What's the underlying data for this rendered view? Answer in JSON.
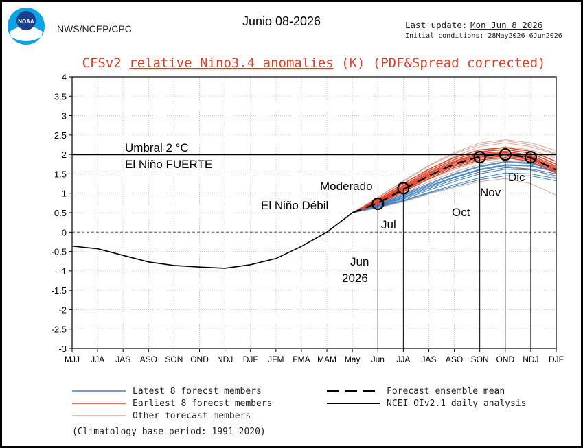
{
  "header": {
    "logo_text": "NOAA",
    "agency": "NWS/NCEP/CPC",
    "date_title": "Junio 08-2026",
    "last_update_label": "Last update:",
    "last_update_value": "Mon Jun 8 2026",
    "initial_conditions": "Initial conditions: 28May2026–6Jun2026",
    "title_parts": [
      "CFSv2 ",
      "relative Nino3.4 anomalies",
      " (K) (PDF&Spread corrected)"
    ]
  },
  "colors": {
    "latest": "#3b7fc4",
    "earliest": "#e0452a",
    "other": "#dca898",
    "title": "#d9402a",
    "ensemble_mean": "#000000",
    "analysis": "#000000"
  },
  "annotations": {
    "threshold_line1": "Umbral 2 °C",
    "threshold_line2": "El Niño FUERTE",
    "moderado": "Moderado",
    "debil": "El Niño Débil",
    "jul": "Jul",
    "oct": "Oct",
    "nov": "Nov",
    "dic": "Dic",
    "jun_line1": "Jun",
    "jun_line2": "2026"
  },
  "legend": {
    "latest": "Latest 8 forecst members",
    "earliest": "Earliest 8 forecst members",
    "other": "Other forecast members",
    "mean": "Forecast ensemble mean",
    "analysis": "NCEI OIv2.1 daily analysis"
  },
  "footnote": "(Climatology base period: 1991–2020)",
  "chart_data": {
    "type": "line",
    "x_ticks": [
      "MJJ",
      "JJA",
      "JAS",
      "ASO",
      "SON",
      "OND",
      "NDJ",
      "DJF",
      "JFM",
      "FMA",
      "MAM",
      "May",
      "Jun",
      "JJA",
      "JAS",
      "ASO",
      "SON",
      "OND",
      "NDJ",
      "DJF"
    ],
    "y_ticks": [
      4,
      3.5,
      3,
      2.5,
      2,
      1.5,
      1,
      0.5,
      0,
      -0.5,
      -1,
      -1.5,
      -2,
      -2.5,
      -3
    ],
    "ylim": [
      -3,
      4
    ],
    "grid": true,
    "threshold": 2,
    "analysis": {
      "name": "NCEI OIv2.1 daily analysis",
      "x": [
        0,
        1,
        2,
        3,
        4,
        5,
        6,
        7,
        8,
        9,
        10,
        11
      ],
      "y": [
        -0.36,
        -0.43,
        -0.6,
        -0.77,
        -0.86,
        -0.9,
        -0.93,
        -0.84,
        -0.68,
        -0.37,
        0.0,
        0.5
      ]
    },
    "ensemble_mean": {
      "name": "Forecast ensemble mean",
      "x": [
        11,
        12,
        13,
        14,
        15,
        16,
        17,
        18,
        19
      ],
      "y": [
        0.5,
        0.75,
        1.1,
        1.45,
        1.75,
        1.95,
        2.0,
        1.92,
        1.6
      ]
    },
    "members": {
      "earliest": [
        [
          0.5,
          0.85,
          1.25,
          1.62,
          1.92,
          2.12,
          2.18,
          2.08,
          1.82
        ],
        [
          0.5,
          0.82,
          1.2,
          1.57,
          1.87,
          2.07,
          2.13,
          2.03,
          1.75
        ],
        [
          0.5,
          0.8,
          1.17,
          1.53,
          1.83,
          2.02,
          2.08,
          1.98,
          1.7
        ],
        [
          0.5,
          0.78,
          1.14,
          1.5,
          1.8,
          1.99,
          2.05,
          1.95,
          1.66
        ],
        [
          0.5,
          0.77,
          1.12,
          1.47,
          1.77,
          1.96,
          2.02,
          1.92,
          1.63
        ],
        [
          0.5,
          0.75,
          1.09,
          1.44,
          1.73,
          1.93,
          1.99,
          1.89,
          1.6
        ],
        [
          0.5,
          0.74,
          1.07,
          1.41,
          1.7,
          1.9,
          1.96,
          1.86,
          1.56
        ],
        [
          0.5,
          0.72,
          1.04,
          1.37,
          1.66,
          1.86,
          1.92,
          1.82,
          1.52
        ]
      ],
      "latest": [
        [
          0.5,
          0.66,
          0.85,
          1.08,
          1.3,
          1.5,
          1.62,
          1.6,
          1.45
        ],
        [
          0.5,
          0.65,
          0.82,
          1.02,
          1.22,
          1.4,
          1.52,
          1.5,
          1.38
        ],
        [
          0.5,
          0.68,
          0.9,
          1.15,
          1.4,
          1.6,
          1.72,
          1.7,
          1.55
        ],
        [
          0.5,
          0.67,
          0.88,
          1.12,
          1.35,
          1.55,
          1.66,
          1.63,
          1.5
        ],
        [
          0.5,
          0.7,
          0.95,
          1.22,
          1.48,
          1.68,
          1.8,
          1.76,
          1.6
        ],
        [
          0.5,
          0.72,
          0.98,
          1.25,
          1.5,
          1.7,
          1.82,
          1.78,
          1.62
        ],
        [
          0.5,
          0.64,
          0.8,
          1.0,
          1.18,
          1.35,
          1.45,
          1.45,
          1.32
        ],
        [
          0.5,
          0.69,
          0.93,
          1.18,
          1.42,
          1.62,
          1.74,
          1.72,
          1.57
        ]
      ],
      "other": [
        [
          0.5,
          0.9,
          1.32,
          1.72,
          2.05,
          2.3,
          2.38,
          2.3,
          2.1
        ],
        [
          0.5,
          0.88,
          1.3,
          1.7,
          2.02,
          2.25,
          2.35,
          2.25,
          2.02
        ],
        [
          0.5,
          0.7,
          1.0,
          1.3,
          1.55,
          1.75,
          1.85,
          1.8,
          1.55
        ],
        [
          0.5,
          0.68,
          0.95,
          1.2,
          1.42,
          1.6,
          1.7,
          1.62,
          1.4
        ],
        [
          0.5,
          0.62,
          0.78,
          0.98,
          1.15,
          1.3,
          1.38,
          1.25,
          0.95
        ],
        [
          0.5,
          0.8,
          1.2,
          1.6,
          1.95,
          2.2,
          2.3,
          2.2,
          2.0
        ],
        [
          0.5,
          0.76,
          1.1,
          1.45,
          1.78,
          2.05,
          2.2,
          2.12,
          1.9
        ],
        [
          0.5,
          0.73,
          1.05,
          1.36,
          1.62,
          1.82,
          1.9,
          1.85,
          1.68
        ]
      ]
    },
    "markers": [
      {
        "x": 12,
        "y": 0.73
      },
      {
        "x": 13,
        "y": 1.13
      },
      {
        "x": 16,
        "y": 1.93
      },
      {
        "x": 17,
        "y": 2.0
      },
      {
        "x": 18,
        "y": 1.93
      }
    ]
  }
}
